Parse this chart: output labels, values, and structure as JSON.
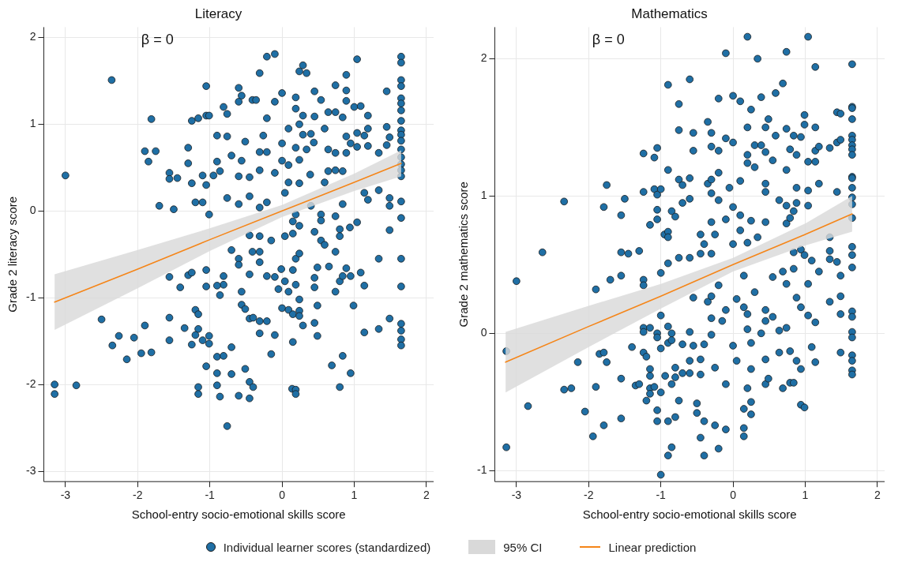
{
  "chart_data": [
    {
      "type": "scatter",
      "title": "Literacy",
      "xlabel": "School-entry socio-emotional skills score",
      "ylabel": "Grade 2 literacy score",
      "xlim": [
        -3.3,
        2.1
      ],
      "ylim": [
        -3.12,
        2.12
      ],
      "xticks": [
        -3,
        -2,
        -1,
        0,
        1,
        2
      ],
      "yticks": [
        -3,
        -2,
        -1,
        0,
        1,
        2
      ],
      "grid": true,
      "legend": "bottom",
      "annotations": [
        "β = 0"
      ],
      "series": [
        {
          "name": "Individual learner scores (standardized)",
          "marker": "circle",
          "color": "#1f6fa5",
          "x": [
            -2.36,
            -3.0,
            -3.15,
            -3.15,
            -2.85,
            -2.5,
            -2.35,
            -2.26,
            -2.15,
            -2.05,
            -1.95,
            -1.9,
            -1.81,
            -1.81,
            -1.9,
            -1.85,
            -1.75,
            -1.7,
            -1.56,
            -1.56,
            -1.5,
            -1.45,
            -1.56,
            -1.41,
            -1.56,
            -1.56,
            -1.3,
            -1.25,
            -1.16,
            -1.05,
            -1.01,
            -1.05,
            -1.3,
            -1.25,
            -1.2,
            -1.1,
            -1.05,
            -1.01,
            -1.1,
            -0.95,
            -1.3,
            -1.25,
            -1.05,
            -1.05,
            -1.2,
            -1.16,
            -1.35,
            -1.16,
            -1.2,
            -1.25,
            -1.1,
            -1.01,
            -1.01,
            -1.05,
            -1.16,
            -1.16,
            -0.9,
            -0.76,
            -0.81,
            -0.76,
            -0.6,
            -0.56,
            -0.6,
            -0.41,
            -0.36,
            -0.31,
            -0.21,
            -0.1,
            -0.1,
            -0.21,
            -0.9,
            -0.86,
            -0.76,
            -0.6,
            -0.7,
            -0.56,
            -0.6,
            -0.45,
            -0.45,
            -0.31,
            -0.31,
            -0.21,
            -0.1,
            -0.21,
            -0.31,
            -0.26,
            -0.51,
            -0.81,
            -0.81,
            -0.9,
            -0.86,
            -0.7,
            -0.6,
            -0.6,
            -0.45,
            -0.56,
            -0.56,
            -0.51,
            -0.45,
            -0.4,
            -0.31,
            -0.21,
            -0.31,
            -0.1,
            -0.15,
            -0.7,
            -0.9,
            -0.81,
            -0.9,
            -0.7,
            -0.9,
            -0.86,
            -0.6,
            -0.45,
            -0.51,
            -0.45,
            -0.4,
            -0.76,
            -0.41,
            -0.31,
            -0.15,
            -0.31,
            -0.45,
            -0.31,
            -0.21,
            -0.1,
            -0.05,
            0,
            0.19,
            0.24,
            0.29,
            0.34,
            0.19,
            0.29,
            0.45,
            0.54,
            0.45,
            0.09,
            0,
            0.19,
            0.29,
            0.24,
            0.4,
            0.44,
            0.34,
            0.24,
            0.09,
            0,
            0.09,
            0.04,
            0.24,
            0.39,
            0.4,
            0.15,
            0.24,
            0.19,
            0.04,
            0.15,
            0.45,
            0.54,
            0.54,
            0.54,
            0.59,
            0.74,
            0.8,
            0.8,
            0.94,
            1.04,
            0.74,
            0.19,
            0.24,
            -0.01,
            0.15,
            0.04,
            0.19,
            0.09,
            0.24,
            0,
            0.09,
            0.15,
            0.24,
            0.24,
            0.29,
            0.45,
            0.49,
            0.45,
            0.45,
            0.49,
            0.65,
            0.8,
            0.74,
            0.84,
            0.89,
            0.95,
            1.09,
            1.14,
            0.99,
            0.49,
            0.15,
            0.14,
            0.19,
            0.19,
            0.69,
            0.84,
            0.95,
            0.8,
            1.14,
            1.34,
            1.49,
            1.34,
            1.49,
            0.64,
            0.74,
            0.89,
            0.89,
            0.89,
            1.04,
            0.74,
            0.84,
            1.0,
            1.09,
            1.19,
            0.59,
            0.89,
            1.04,
            1.14,
            1.19,
            0.95,
            1.04,
            1.19,
            0.64,
            0.74,
            0.89,
            0.64,
            0.74,
            0.84,
            0.59,
            1.14,
            1.19,
            0.84,
            1.34,
            1.34,
            1.45,
            1.45,
            1.45,
            1.49,
            1.49,
            1.49,
            1.65,
            1.65,
            1.65,
            1.65,
            1.65,
            1.65,
            1.65,
            1.65,
            1.65,
            1.65,
            1.65,
            1.65,
            1.65,
            1.65,
            1.65,
            1.65,
            1.65,
            1.65,
            1.65,
            1.65,
            1.65,
            1.65,
            1.65,
            1.65
          ],
          "values": [
            1.51,
            0.41,
            -2.0,
            -2.11,
            -2.01,
            -1.25,
            -1.55,
            -1.44,
            -1.71,
            -1.46,
            -1.64,
            -1.32,
            -1.63,
            1.06,
            0.69,
            0.57,
            0.69,
            0.06,
            0.44,
            0.37,
            0.02,
            0.38,
            -0.76,
            -0.88,
            -1.23,
            -1.49,
            0.73,
            1.04,
            1.07,
            1.1,
            1.1,
            1.44,
            0.55,
            0.32,
            0.1,
            0.1,
            0.3,
            -0.04,
            0.41,
            0.41,
            -0.74,
            -0.71,
            -0.68,
            -0.87,
            -1.14,
            -1.19,
            -1.35,
            -1.36,
            -1.43,
            -1.54,
            -1.49,
            -1.44,
            -1.53,
            -1.79,
            -2.03,
            -2.11,
            0.87,
            0.86,
            1.2,
            1.12,
            1.42,
            1.33,
            1.26,
            1.28,
            1.28,
            1.59,
            1.78,
            1.81,
            1.26,
            1.07,
            0.57,
            0.46,
            0.15,
            0.08,
            0.64,
            0.58,
            0.4,
            0.39,
            0.17,
            0.68,
            0.47,
            0.68,
            0.44,
            0.1,
            0.04,
            0.87,
            0.8,
            -0.75,
            -0.85,
            -0.86,
            -0.97,
            -0.45,
            -0.55,
            -0.62,
            -0.73,
            -0.93,
            -1.08,
            -1.13,
            -1.24,
            -1.23,
            -1.27,
            -1.27,
            -1.41,
            -1.43,
            -1.65,
            -1.57,
            -1.68,
            -1.67,
            -1.87,
            -1.88,
            -2.01,
            -2.14,
            -2.13,
            -2.16,
            -1.82,
            -1.97,
            -2.03,
            -2.48,
            -0.47,
            -0.47,
            -0.34,
            -0.29,
            -0.28,
            -0.59,
            -0.75,
            -0.76,
            -0.9,
            1.36,
            1.31,
            1.61,
            1.68,
            1.59,
            1.18,
            1.1,
            1.38,
            1.28,
            1.09,
            0.95,
            0.78,
            0.73,
            0.88,
            1.0,
            0.89,
            0.79,
            0.71,
            0.59,
            0.53,
            0.58,
            0.33,
            0.21,
            0.32,
            0.42,
            0.06,
            -0.12,
            -0.17,
            -0.04,
            -0.29,
            -0.26,
            -0.24,
            -0.04,
            -0.11,
            -0.34,
            -0.39,
            -0.06,
            -0.21,
            -0.29,
            -0.19,
            -0.13,
            -0.47,
            -0.55,
            -0.49,
            -0.67,
            -0.68,
            -0.81,
            -0.85,
            -0.93,
            -1.02,
            -1.12,
            -1.14,
            -1.19,
            -1.15,
            -1.21,
            -1.32,
            -1.29,
            -1.09,
            -0.77,
            -0.88,
            -0.65,
            -0.64,
            -0.81,
            -0.93,
            -0.75,
            -0.66,
            -0.75,
            -0.71,
            -0.86,
            -1.09,
            -1.44,
            -1.51,
            -2.05,
            -2.06,
            -2.11,
            -1.78,
            -1.67,
            -1.87,
            -2.03,
            -1.4,
            -1.36,
            -1.24,
            -0.55,
            -0.22,
            1.14,
            1.45,
            1.57,
            1.39,
            1.27,
            1.75,
            1.14,
            1.08,
            1.2,
            1.21,
            1.1,
            0.95,
            0.86,
            0.9,
            0.87,
            0.95,
            0.78,
            0.74,
            0.75,
            0.71,
            0.67,
            0.67,
            0.46,
            0.47,
            0.46,
            0.33,
            0.21,
            0.13,
            0.08,
            0.24,
            0.67,
            0.97,
            1.38,
            0.76,
            0.85,
            0.15,
            0.06,
            1.78,
            1.71,
            1.51,
            1.44,
            1.3,
            1.24,
            1.16,
            1.04,
            0.93,
            0.88,
            0.81,
            0.71,
            0.62,
            0.54,
            0.47,
            0.4,
            0.11,
            -0.08,
            -0.55,
            -0.87,
            -1.3,
            -1.38,
            -1.48,
            -1.55
          ]
        },
        {
          "name": "95% CI",
          "type": "area",
          "color": "#d9d9d9"
        },
        {
          "name": "Linear prediction",
          "type": "line",
          "color": "#f58518",
          "x": [
            -3.15,
            -2,
            -1,
            0,
            1,
            1.65
          ],
          "values": [
            -1.05,
            -0.67,
            -0.33,
            0,
            0.33,
            0.55
          ],
          "lower": [
            -1.37,
            -0.89,
            -0.46,
            -0.07,
            0.23,
            0.4
          ],
          "upper": [
            -0.73,
            -0.45,
            -0.2,
            0.07,
            0.43,
            0.7
          ]
        }
      ]
    },
    {
      "type": "scatter",
      "title": "Mathematics",
      "xlabel": "School-entry socio-emotional skills score",
      "ylabel": "Grade 2 mathematics score",
      "xlim": [
        -3.3,
        2.1
      ],
      "ylim": [
        -1.08,
        2.23
      ],
      "xticks": [
        -3,
        -2,
        -1,
        0,
        1,
        2
      ],
      "yticks": [
        -1,
        0,
        1,
        2
      ],
      "grid": true,
      "annotations": [
        "β = 0"
      ],
      "series": [
        {
          "marker": "circle",
          "color": "#1f6fa5",
          "x": [
            -3.14,
            -3.14,
            -3.0,
            -2.84,
            -2.64,
            -2.34,
            -2.34,
            -2.24,
            -2.15,
            -2.05,
            -1.94,
            -1.9,
            -1.9,
            -1.85,
            -1.79,
            -1.75,
            -1.79,
            -1.79,
            -1.75,
            -1.7,
            -1.55,
            -1.55,
            -1.55,
            -1.45,
            -1.5,
            -1.55,
            -1.55,
            -1.4,
            -1.35,
            -1.3,
            -1.3,
            -1.24,
            -1.24,
            -1.24,
            -1.24,
            -1.24,
            -1.24,
            -1.24,
            -1.2,
            -1.2,
            -1.15,
            -1.15,
            -1.15,
            -1.15,
            -1.15,
            -1.09,
            -1.09,
            -1.05,
            -1.05,
            -1.15,
            -1.05,
            -1.05,
            -1.05,
            -1.05,
            -1.05,
            -1.05,
            -1.09,
            -1.0,
            -1.0,
            -1.0,
            -1.0,
            -1.0,
            -1.0,
            -0.94,
            -0.95,
            -0.9,
            -0.9,
            -0.9,
            -0.9,
            -0.9,
            -0.9,
            -0.9,
            -0.9,
            -0.9,
            -0.85,
            -0.8,
            -0.85,
            -0.85,
            -0.85,
            -0.85,
            -0.8,
            -0.8,
            -0.8,
            -0.75,
            -0.75,
            -0.75,
            -0.75,
            -0.75,
            -0.7,
            -0.7,
            -0.7,
            -0.7,
            -0.6,
            -0.6,
            -0.6,
            -0.6,
            -0.6,
            -0.6,
            -0.6,
            -0.55,
            -0.55,
            -0.55,
            -0.55,
            -0.5,
            -0.5,
            -0.45,
            -0.45,
            -0.45,
            -0.45,
            -0.45,
            -0.4,
            -0.4,
            -0.4,
            -0.4,
            -0.35,
            -0.35,
            -0.35,
            -0.3,
            -0.3,
            -0.3,
            -0.3,
            -0.3,
            -0.3,
            -0.3,
            -0.3,
            -0.3,
            -0.25,
            -0.25,
            -0.25,
            -0.2,
            -0.2,
            -0.2,
            -0.2,
            -0.2,
            -0.2,
            -0.15,
            -0.1,
            -0.1,
            -0.1,
            -0.1,
            -0.1,
            -0.1,
            -0.05,
            0,
            0,
            0,
            0,
            0,
            0.05,
            0.05,
            0.1,
            0.1,
            0.1,
            0.1,
            0.15,
            0.15,
            0.15,
            0.15,
            0.15,
            0.2,
            0.2,
            0.2,
            0.2,
            0.2,
            0.2,
            0.2,
            0.2,
            0.25,
            0.25,
            0.25,
            0.25,
            0.25,
            0.25,
            0.3,
            0.3,
            0.3,
            0.34,
            0.34,
            0.39,
            0.39,
            0.39,
            0.45,
            0.45,
            0.45,
            0.45,
            0.45,
            0.45,
            0.45,
            0.45,
            0.45,
            0.49,
            0.49,
            0.55,
            0.55,
            0.55,
            0.59,
            0.59,
            0.64,
            0.64,
            0.64,
            0.69,
            0.69,
            0.69,
            0.74,
            0.74,
            0.74,
            0.74,
            0.74,
            0.74,
            0.74,
            0.79,
            0.79,
            0.79,
            0.79,
            0.84,
            0.84,
            0.84,
            0.84,
            0.84,
            0.88,
            0.88,
            0.88,
            0.88,
            0.88,
            0.94,
            0.94,
            0.94,
            0.94,
            0.94,
            0.99,
            0.99,
            0.99,
            0.99,
            1.04,
            1.04,
            1.04,
            1.04,
            1.04,
            1.04,
            1.09,
            1.09,
            1.14,
            1.14,
            1.14,
            1.14,
            1.14,
            1.14,
            1.19,
            1.19,
            1.19,
            1.34,
            1.34,
            1.34,
            1.34,
            1.34,
            1.44,
            1.44,
            1.44,
            1.44,
            1.49,
            1.49,
            1.49,
            1.49,
            1.49,
            1.49,
            1.65,
            1.65,
            1.65,
            1.65,
            1.65,
            1.65,
            1.65,
            1.65,
            1.65,
            1.65,
            1.65,
            1.65,
            1.65,
            1.65,
            1.65,
            1.65,
            1.65,
            1.65,
            1.65,
            1.65,
            1.65,
            1.65,
            1.65,
            1.65,
            1.65,
            1.65
          ],
          "values": [
            -0.83,
            -0.13,
            0.38,
            -0.53,
            0.59,
            0.96,
            -0.41,
            -0.4,
            -0.21,
            -0.57,
            -0.75,
            0.32,
            -0.39,
            -0.15,
            -0.14,
            -0.21,
            -0.67,
            0.92,
            1.08,
            0.39,
            0.86,
            0.42,
            0.59,
            0.58,
            0.98,
            -0.33,
            -0.62,
            -0.1,
            -0.38,
            0.6,
            -0.37,
            1.31,
            1.03,
            0.39,
            0.35,
            0.04,
            0.01,
            -0.14,
            -0.17,
            -0.49,
            0.04,
            -0.26,
            -0.31,
            -0.4,
            -0.44,
            1.28,
            1.05,
            1.35,
            1.01,
            0.79,
            0.83,
            0.9,
            0,
            -0.03,
            -0.56,
            -0.64,
            -0.39,
            1.05,
            0.44,
            0.13,
            -0.11,
            -0.43,
            -1.03,
            -0.31,
            0.72,
            1.81,
            1.19,
            0.74,
            0.7,
            0.51,
            0.05,
            -0.07,
            -0.64,
            -0.89,
            0.89,
            0.85,
            0,
            -0.05,
            -0.37,
            -0.83,
            -0.25,
            -0.32,
            -0.61,
            1.67,
            1.48,
            1.12,
            0.55,
            -0.49,
            1.08,
            0.95,
            -0.08,
            -0.29,
            1.85,
            1.13,
            0.98,
            0.55,
            0.01,
            -0.2,
            -0.29,
            1.46,
            1.33,
            -0.09,
            0.26,
            -0.51,
            -0.58,
            0.72,
            0.58,
            -0.19,
            -0.3,
            -0.76,
            0.65,
            -0.08,
            -0.64,
            -0.89,
            1.54,
            1.09,
            0.23,
            1.46,
            1.36,
            1.12,
            1.02,
            0.81,
            0.58,
            0.27,
            0.11,
            -0.01,
            0.72,
            -0.25,
            -0.67,
            1.71,
            1.33,
            1.17,
            0.97,
            0.35,
            -0.84,
            0.09,
            2.04,
            1.42,
            0.83,
            0.17,
            -0.37,
            -0.7,
            1.06,
            1.73,
            1.39,
            0.92,
            0.65,
            -0.09,
            -0.2,
            0.25,
            1.69,
            1.11,
            0.86,
            0.75,
            0.42,
            0.19,
            -0.55,
            -0.69,
            -0.75,
            2.16,
            1.5,
            1.3,
            1.24,
            0.66,
            0.14,
            0.03,
            -0.4,
            1.63,
            0.82,
            -0.07,
            -0.26,
            -0.5,
            -0.59,
            1.21,
            1.37,
            0.3,
            2.0,
            0.7,
            1.72,
            1.37,
            0,
            1.5,
            1.32,
            1.09,
            1.03,
            0.81,
            0.17,
            0.09,
            -0.19,
            -0.37,
            1.56,
            -0.33,
            1.26,
            0.41,
            0.12,
            1.75,
            1.44,
            0.97,
            0.02,
            -0.14,
            1.82,
            0.45,
            -0.4,
            2.05,
            1.49,
            1.19,
            0.93,
            0.8,
            0.36,
            0.04,
            1.34,
            0.84,
            -0.13,
            -0.36,
            1.44,
            0.89,
            0.59,
            0.47,
            -0.36,
            1.3,
            1.06,
            0.95,
            0.26,
            -0.2,
            1.43,
            0.61,
            0.19,
            -0.26,
            -0.52,
            1.59,
            1.52,
            0.57,
            -0.54,
            2.16,
            1.25,
            1.04,
            0.93,
            0.36,
            0.13,
            0.53,
            -0.1,
            1.94,
            1.5,
            1.33,
            1.25,
            0.08,
            -0.21,
            1.36,
            1.09,
            0.45,
            1.35,
            0.7,
            0.6,
            0.54,
            0.23,
            1.61,
            1.39,
            1.03,
            0.52,
            1.6,
            1.41,
            0.42,
            0.27,
            0.14,
            -0.14,
            1.96,
            1.65,
            1.64,
            1.56,
            1.44,
            1.41,
            1.37,
            1.34,
            1.3,
            1.14,
            1.13,
            1.06,
            0.99,
            0.94,
            0.84,
            0.63,
            0.57,
            0.48,
            0.16,
            0.12,
            0.01,
            -0.03,
            -0.16,
            -0.2,
            -0.27,
            -0.3
          ]
        },
        {
          "type": "area",
          "color": "#d9d9d9"
        },
        {
          "type": "line",
          "color": "#f58518",
          "x": [
            -3.15,
            -2,
            -1,
            0,
            1,
            1.65
          ],
          "values": [
            -0.21,
            0.05,
            0.27,
            0.5,
            0.72,
            0.87
          ],
          "lower": [
            -0.43,
            -0.1,
            0.18,
            0.45,
            0.64,
            0.74
          ],
          "upper": [
            0.01,
            0.2,
            0.36,
            0.55,
            0.8,
            1.0
          ]
        }
      ]
    }
  ]
}
